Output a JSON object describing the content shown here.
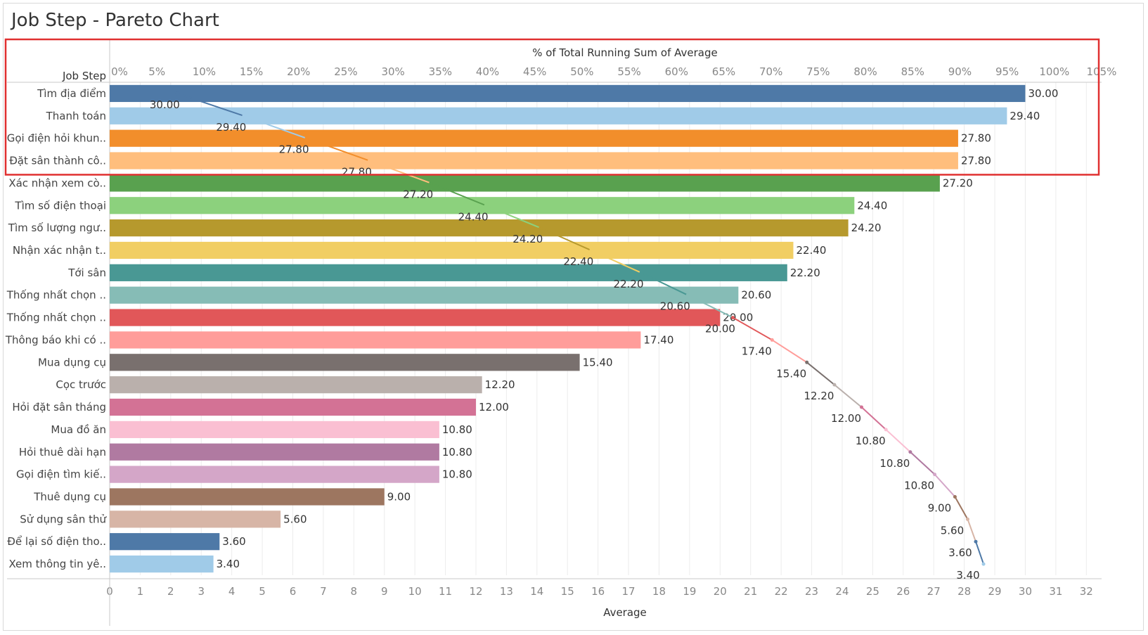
{
  "title": "Job Step - Pareto Chart",
  "colors": {
    "grid": "#ececec",
    "axis": "#c9c9c9",
    "tick_text": "#888888",
    "label_text": "#444444",
    "highlight": "#e03030"
  },
  "chart_data": {
    "type": "bar",
    "orientation": "horizontal",
    "row_header": "Job Step",
    "xlabel": "Average",
    "x2label": "% of Total Running Sum of Average",
    "xlim": [
      0,
      32.5
    ],
    "x_ticks": [
      "0",
      "1",
      "2",
      "3",
      "4",
      "5",
      "6",
      "7",
      "8",
      "9",
      "10",
      "11",
      "12",
      "13",
      "14",
      "15",
      "16",
      "17",
      "18",
      "19",
      "20",
      "21",
      "22",
      "23",
      "24",
      "25",
      "26",
      "27",
      "28",
      "29",
      "30",
      "31",
      "32"
    ],
    "x2lim": [
      0,
      105
    ],
    "x2_ticks": [
      "0%",
      "5%",
      "10%",
      "15%",
      "20%",
      "25%",
      "30%",
      "35%",
      "40%",
      "45%",
      "50%",
      "55%",
      "60%",
      "65%",
      "70%",
      "75%",
      "80%",
      "85%",
      "90%",
      "95%",
      "100%",
      "105%"
    ],
    "grid": true,
    "categories": [
      "Tìm địa điểm",
      "Thanh toán",
      "Gọi điện hỏi khun..",
      "Đặt sân thành cô..",
      "Xác nhận xem cò..",
      "Tìm số điện thoại",
      "Tìm số lượng ngư..",
      "Nhận xác nhận t..",
      "Tới sân",
      "Thống nhất chọn ..",
      "Thống nhất chọn ..",
      "Thông báo khi có ..",
      "Mua dụng cụ",
      "Cọc trước",
      "Hỏi đặt sân tháng",
      "Mua đồ ăn",
      "Hỏi thuê dài hạn",
      "Gọi điện tìm kiế..",
      "Thuê dụng cụ",
      "Sử dụng sân thử",
      "Để lại số điện tho..",
      "Xem thông tin yê.."
    ],
    "values": [
      30.0,
      29.4,
      27.8,
      27.8,
      27.2,
      24.4,
      24.2,
      22.4,
      22.2,
      20.6,
      20.0,
      17.4,
      15.4,
      12.2,
      12.0,
      10.8,
      10.8,
      10.8,
      9.0,
      5.6,
      3.6,
      3.4
    ],
    "value_labels": [
      "30.00",
      "29.40",
      "27.80",
      "27.80",
      "27.20",
      "24.40",
      "24.20",
      "22.40",
      "22.20",
      "20.60",
      "20.00",
      "17.40",
      "15.40",
      "12.20",
      "12.00",
      "10.80",
      "10.80",
      "10.80",
      "9.00",
      "5.60",
      "3.60",
      "3.40"
    ],
    "bar_colors": [
      "#4e79a7",
      "#a0cbe8",
      "#f28e2b",
      "#ffbe7d",
      "#59a14f",
      "#8cd17d",
      "#b6992d",
      "#f1ce63",
      "#499894",
      "#86bcb6",
      "#e15759",
      "#ff9d9a",
      "#79706e",
      "#bab0ac",
      "#d37295",
      "#fabfd2",
      "#b07aa1",
      "#d4a6c8",
      "#9d7660",
      "#d7b5a6",
      "#4e79a7",
      "#a0cbe8"
    ],
    "line_series": {
      "name": "% of Total Running Sum of Average",
      "values": [
        7.17,
        14.2,
        20.84,
        27.49,
        33.99,
        39.82,
        45.6,
        50.96,
        56.26,
        61.19,
        65.97,
        70.12,
        73.8,
        76.72,
        79.59,
        82.17,
        84.75,
        87.33,
        89.48,
        90.82,
        91.68,
        92.5
      ],
      "point_labels": [
        "30.00",
        "29.40",
        "27.80",
        "27.80",
        "27.20",
        "24.40",
        "24.20",
        "22.40",
        "22.20",
        "20.60",
        "20.00",
        "17.40",
        "15.40",
        "12.20",
        "12.00",
        "10.80",
        "10.80",
        "10.80",
        "9.00",
        "5.60",
        "3.60",
        "3.40"
      ]
    },
    "highlight_rows": [
      0,
      3
    ]
  }
}
